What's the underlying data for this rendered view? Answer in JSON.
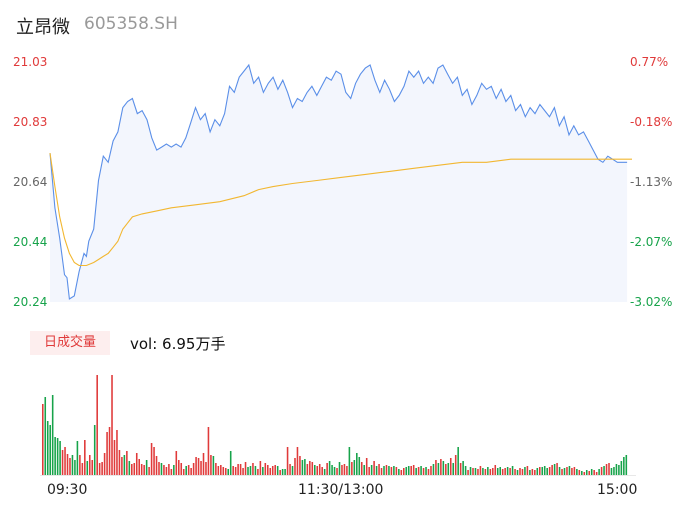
{
  "header": {
    "name": "立昂微",
    "code": "605358.SH"
  },
  "colors": {
    "price_line": "#5b8fe8",
    "price_fill": "#f3f6fd",
    "avg_line": "#f2b731",
    "up": "#e03a3a",
    "down": "#17a34a",
    "axis_text_neutral": "#666666"
  },
  "volume_panel": {
    "badge_label": "日成交量",
    "vol_text": "vol: 6.95万手"
  },
  "chart_data": [
    {
      "type": "line",
      "title": "",
      "ylim": [
        20.24,
        21.03
      ],
      "y_ticks": [
        "21.03",
        "20.83",
        "20.64",
        "20.44",
        "20.24"
      ],
      "y_ticks_pct": [
        "0.77%",
        "-0.18%",
        "-1.13%",
        "-2.07%",
        "-3.02%"
      ],
      "x_ticks": [
        "09:30",
        "11:30/13:00",
        "15:00"
      ],
      "session_minutes": 240,
      "series": [
        {
          "role": "price",
          "points": [
            [
              0,
              20.73
            ],
            [
              2,
              20.55
            ],
            [
              4,
              20.45
            ],
            [
              6,
              20.33
            ],
            [
              7,
              20.32
            ],
            [
              8,
              20.25
            ],
            [
              10,
              20.26
            ],
            [
              12,
              20.34
            ],
            [
              14,
              20.4
            ],
            [
              15,
              20.39
            ],
            [
              16,
              20.44
            ],
            [
              18,
              20.48
            ],
            [
              20,
              20.64
            ],
            [
              22,
              20.72
            ],
            [
              24,
              20.7
            ],
            [
              26,
              20.77
            ],
            [
              28,
              20.8
            ],
            [
              30,
              20.88
            ],
            [
              32,
              20.9
            ],
            [
              34,
              20.91
            ],
            [
              36,
              20.86
            ],
            [
              38,
              20.87
            ],
            [
              40,
              20.84
            ],
            [
              42,
              20.78
            ],
            [
              44,
              20.74
            ],
            [
              46,
              20.75
            ],
            [
              48,
              20.76
            ],
            [
              50,
              20.75
            ],
            [
              52,
              20.76
            ],
            [
              54,
              20.75
            ],
            [
              56,
              20.78
            ],
            [
              58,
              20.83
            ],
            [
              60,
              20.88
            ],
            [
              62,
              20.84
            ],
            [
              64,
              20.86
            ],
            [
              66,
              20.8
            ],
            [
              68,
              20.84
            ],
            [
              70,
              20.82
            ],
            [
              72,
              20.86
            ],
            [
              74,
              20.95
            ],
            [
              76,
              20.93
            ],
            [
              78,
              20.98
            ],
            [
              80,
              21.0
            ],
            [
              82,
              21.02
            ],
            [
              84,
              20.96
            ],
            [
              86,
              20.98
            ],
            [
              88,
              20.93
            ],
            [
              90,
              20.96
            ],
            [
              92,
              20.98
            ],
            [
              94,
              20.94
            ],
            [
              96,
              20.97
            ],
            [
              98,
              20.93
            ],
            [
              100,
              20.88
            ],
            [
              102,
              20.91
            ],
            [
              104,
              20.9
            ],
            [
              106,
              20.93
            ],
            [
              108,
              20.95
            ],
            [
              110,
              20.92
            ],
            [
              112,
              20.95
            ],
            [
              114,
              20.98
            ],
            [
              116,
              20.97
            ],
            [
              118,
              21.0
            ],
            [
              120,
              20.99
            ],
            [
              122,
              20.93
            ],
            [
              124,
              20.91
            ],
            [
              126,
              20.96
            ],
            [
              128,
              20.99
            ],
            [
              130,
              21.01
            ],
            [
              132,
              21.02
            ],
            [
              134,
              20.97
            ],
            [
              136,
              20.93
            ],
            [
              138,
              20.97
            ],
            [
              140,
              20.94
            ],
            [
              142,
              20.9
            ],
            [
              144,
              20.92
            ],
            [
              146,
              20.95
            ],
            [
              148,
              21.0
            ],
            [
              150,
              20.98
            ],
            [
              152,
              21.0
            ],
            [
              154,
              20.96
            ],
            [
              156,
              20.98
            ],
            [
              158,
              20.96
            ],
            [
              160,
              21.01
            ],
            [
              162,
              21.02
            ],
            [
              164,
              20.99
            ],
            [
              166,
              20.96
            ],
            [
              168,
              20.98
            ],
            [
              170,
              20.92
            ],
            [
              172,
              20.94
            ],
            [
              174,
              20.89
            ],
            [
              176,
              20.92
            ],
            [
              178,
              20.96
            ],
            [
              180,
              20.94
            ],
            [
              182,
              20.95
            ],
            [
              184,
              20.91
            ],
            [
              186,
              20.94
            ],
            [
              188,
              20.9
            ],
            [
              190,
              20.92
            ],
            [
              192,
              20.87
            ],
            [
              194,
              20.89
            ],
            [
              196,
              20.85
            ],
            [
              198,
              20.88
            ],
            [
              200,
              20.86
            ],
            [
              202,
              20.89
            ],
            [
              204,
              20.87
            ],
            [
              206,
              20.85
            ],
            [
              208,
              20.88
            ],
            [
              210,
              20.82
            ],
            [
              212,
              20.85
            ],
            [
              214,
              20.79
            ],
            [
              216,
              20.82
            ],
            [
              218,
              20.79
            ],
            [
              220,
              20.8
            ],
            [
              222,
              20.77
            ],
            [
              224,
              20.74
            ],
            [
              226,
              20.71
            ],
            [
              228,
              20.7
            ],
            [
              230,
              20.72
            ],
            [
              232,
              20.71
            ],
            [
              234,
              20.7
            ],
            [
              236,
              20.7
            ],
            [
              238,
              20.7
            ]
          ]
        },
        {
          "role": "average",
          "points": [
            [
              0,
              20.73
            ],
            [
              2,
              20.62
            ],
            [
              4,
              20.52
            ],
            [
              6,
              20.45
            ],
            [
              8,
              20.4
            ],
            [
              10,
              20.37
            ],
            [
              12,
              20.36
            ],
            [
              15,
              20.36
            ],
            [
              18,
              20.37
            ],
            [
              20,
              20.38
            ],
            [
              22,
              20.39
            ],
            [
              24,
              20.4
            ],
            [
              26,
              20.42
            ],
            [
              28,
              20.44
            ],
            [
              30,
              20.48
            ],
            [
              34,
              20.52
            ],
            [
              38,
              20.53
            ],
            [
              44,
              20.54
            ],
            [
              50,
              20.55
            ],
            [
              60,
              20.56
            ],
            [
              70,
              20.57
            ],
            [
              80,
              20.59
            ],
            [
              86,
              20.61
            ],
            [
              92,
              20.62
            ],
            [
              100,
              20.63
            ],
            [
              110,
              20.64
            ],
            [
              120,
              20.65
            ],
            [
              130,
              20.66
            ],
            [
              140,
              20.67
            ],
            [
              150,
              20.68
            ],
            [
              160,
              20.69
            ],
            [
              170,
              20.7
            ],
            [
              180,
              20.7
            ],
            [
              190,
              20.71
            ],
            [
              200,
              20.71
            ],
            [
              210,
              20.71
            ],
            [
              220,
              20.71
            ],
            [
              230,
              20.71
            ],
            [
              240,
              20.71
            ]
          ]
        }
      ]
    },
    {
      "type": "bar",
      "title": "",
      "x_ticks": [
        "09:30",
        "11:30/13:00",
        "15:00"
      ],
      "volume": [
        71,
        78,
        54,
        50,
        80,
        38,
        37,
        34,
        25,
        28,
        21,
        17,
        20,
        15,
        34,
        20,
        12,
        35,
        14,
        20,
        15,
        50,
        100,
        12,
        13,
        22,
        43,
        48,
        100,
        35,
        45,
        25,
        18,
        20,
        24,
        14,
        11,
        12,
        22,
        16,
        11,
        10,
        15,
        8,
        32,
        28,
        19,
        13,
        12,
        10,
        8,
        11,
        6,
        10,
        24,
        15,
        12,
        6,
        9,
        10,
        7,
        12,
        18,
        17,
        14,
        22,
        13,
        48,
        20,
        19,
        12,
        9,
        10,
        8,
        7,
        6,
        24,
        9,
        8,
        11,
        11,
        7,
        13,
        8,
        9,
        12,
        9,
        6,
        14,
        8,
        12,
        10,
        7,
        9,
        10,
        9,
        5,
        6,
        6,
        28,
        11,
        9,
        17,
        28,
        19,
        15,
        16,
        11,
        14,
        13,
        10,
        9,
        11,
        8,
        6,
        12,
        14,
        10,
        8,
        7,
        13,
        10,
        11,
        9,
        28,
        13,
        15,
        22,
        18,
        13,
        10,
        17,
        8,
        10,
        14,
        9,
        11,
        7,
        9,
        10,
        9,
        8,
        9,
        8,
        6,
        5,
        7,
        8,
        9,
        9,
        10,
        7,
        8,
        9,
        7,
        8,
        6,
        9,
        11,
        15,
        12,
        16,
        14,
        11,
        12,
        17,
        12,
        20,
        28,
        12,
        14,
        9,
        5,
        8,
        7,
        7,
        6,
        9,
        7,
        6,
        8,
        6,
        7,
        10,
        7,
        8,
        6,
        7,
        8,
        7,
        9,
        6,
        5,
        7,
        6,
        8,
        9,
        5,
        6,
        5,
        7,
        8,
        8,
        9,
        7,
        8,
        10,
        11,
        12,
        8,
        6,
        7,
        8,
        9,
        7,
        8,
        6,
        5,
        4,
        3,
        5,
        4,
        6,
        5,
        3,
        6,
        8,
        9,
        11,
        12,
        7,
        8,
        11,
        10,
        14,
        18,
        20
      ],
      "direction": [
        1,
        0,
        0,
        0,
        0,
        0,
        0,
        0,
        1,
        1,
        1,
        1,
        0,
        0,
        0,
        1,
        1,
        1,
        0,
        1,
        1,
        0,
        1,
        1,
        1,
        1,
        1,
        1,
        1,
        1,
        1,
        1,
        1,
        0,
        1,
        0,
        1,
        1,
        1,
        1,
        1,
        1,
        0,
        1,
        1,
        1,
        1,
        1,
        0,
        1,
        1,
        1,
        1,
        0,
        1,
        1,
        1,
        1,
        0,
        1,
        1,
        1,
        1,
        1,
        1,
        1,
        1,
        1,
        1,
        0,
        1,
        1,
        1,
        1,
        1,
        0,
        0,
        1,
        1,
        1,
        1,
        1,
        1,
        0,
        0,
        1,
        0,
        1,
        1,
        0,
        1,
        1,
        1,
        1,
        1,
        0,
        1,
        0,
        0,
        1,
        1,
        0,
        1,
        1,
        1,
        0,
        0,
        1,
        1,
        1,
        0,
        1,
        1,
        1,
        0,
        1,
        0,
        0,
        0,
        1,
        0,
        1,
        1,
        1,
        0,
        1,
        0,
        0,
        0,
        1,
        0,
        1,
        1,
        0,
        1,
        0,
        1,
        1,
        0,
        1,
        0,
        1,
        0,
        1,
        0,
        1,
        1,
        0,
        0,
        1,
        1,
        0,
        1,
        0,
        1,
        0,
        1,
        1,
        0,
        1,
        0,
        1,
        0,
        1,
        0,
        1,
        0,
        1,
        0,
        1,
        0,
        0,
        1,
        0,
        1,
        0,
        1,
        1,
        0,
        1,
        0,
        1,
        1,
        1,
        0,
        0,
        1,
        1,
        0,
        1,
        0,
        1,
        0,
        1,
        1,
        0,
        1,
        0,
        1,
        1,
        0,
        1,
        0,
        0,
        0,
        1,
        1,
        0,
        1,
        0,
        1,
        0,
        1,
        0,
        1,
        1,
        0,
        1,
        0,
        1,
        0,
        1,
        0,
        1,
        1,
        0,
        1,
        0,
        1,
        1
      ]
    }
  ]
}
